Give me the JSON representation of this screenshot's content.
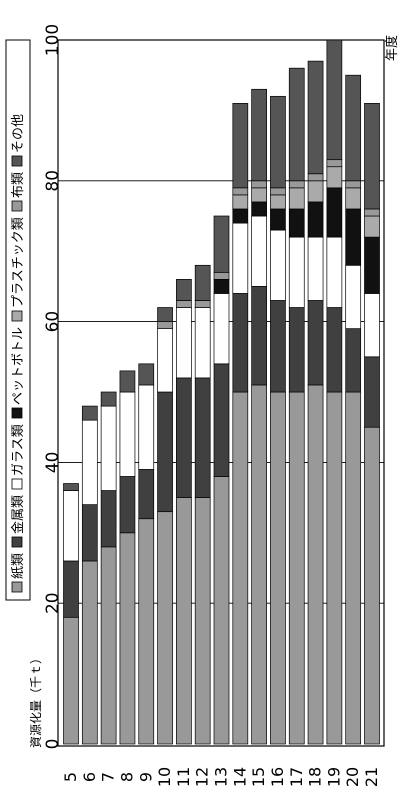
{
  "chart_data": {
    "type": "bar",
    "stacked": true,
    "orientation": "horizontal",
    "title": "",
    "xlabel": "資源化量（千ｔ）",
    "ylabel": "年度",
    "xlim": [
      0,
      100
    ],
    "xticks": [
      0,
      20,
      40,
      60,
      80,
      100
    ],
    "grid": true,
    "legend": "top",
    "categories": [
      "5",
      "6",
      "7",
      "8",
      "9",
      "10",
      "11",
      "12",
      "13",
      "14",
      "15",
      "16",
      "17",
      "18",
      "19",
      "20",
      "21"
    ],
    "series": [
      {
        "name": "紙類",
        "color": "#999999",
        "values": [
          18,
          26,
          28,
          30,
          32,
          33,
          35,
          35,
          38,
          50,
          51,
          50,
          50,
          51,
          50,
          50,
          45
        ]
      },
      {
        "name": "金属類",
        "color": "#404040",
        "values": [
          8,
          8,
          8,
          8,
          7,
          17,
          17,
          17,
          16,
          14,
          14,
          13,
          12,
          12,
          12,
          9,
          10
        ]
      },
      {
        "name": "ガラス類",
        "color": "#ffffff",
        "values": [
          10,
          12,
          12,
          12,
          12,
          9,
          10,
          10,
          10,
          10,
          10,
          10,
          10,
          9,
          10,
          9,
          9
        ]
      },
      {
        "name": "ペットボトル",
        "color": "#111111",
        "values": [
          0,
          0,
          0,
          0,
          0,
          0,
          0,
          0,
          2,
          2,
          2,
          3,
          4,
          5,
          7,
          8,
          8
        ]
      },
      {
        "name": "プラスチック類",
        "color": "#aaaaaa",
        "values": [
          0,
          0,
          0,
          0,
          0,
          0,
          0,
          0,
          0,
          2,
          2,
          2,
          3,
          3,
          3,
          3,
          3
        ]
      },
      {
        "name": "布類",
        "color": "#999999",
        "values": [
          0,
          0,
          0,
          0,
          0,
          1,
          1,
          1,
          1,
          1,
          1,
          1,
          1,
          1,
          1,
          1,
          1
        ]
      },
      {
        "name": "その他",
        "color": "#555555",
        "values": [
          1,
          2,
          2,
          3,
          3,
          2,
          3,
          5,
          8,
          12,
          13,
          13,
          16,
          16,
          17,
          15,
          15
        ]
      }
    ]
  }
}
